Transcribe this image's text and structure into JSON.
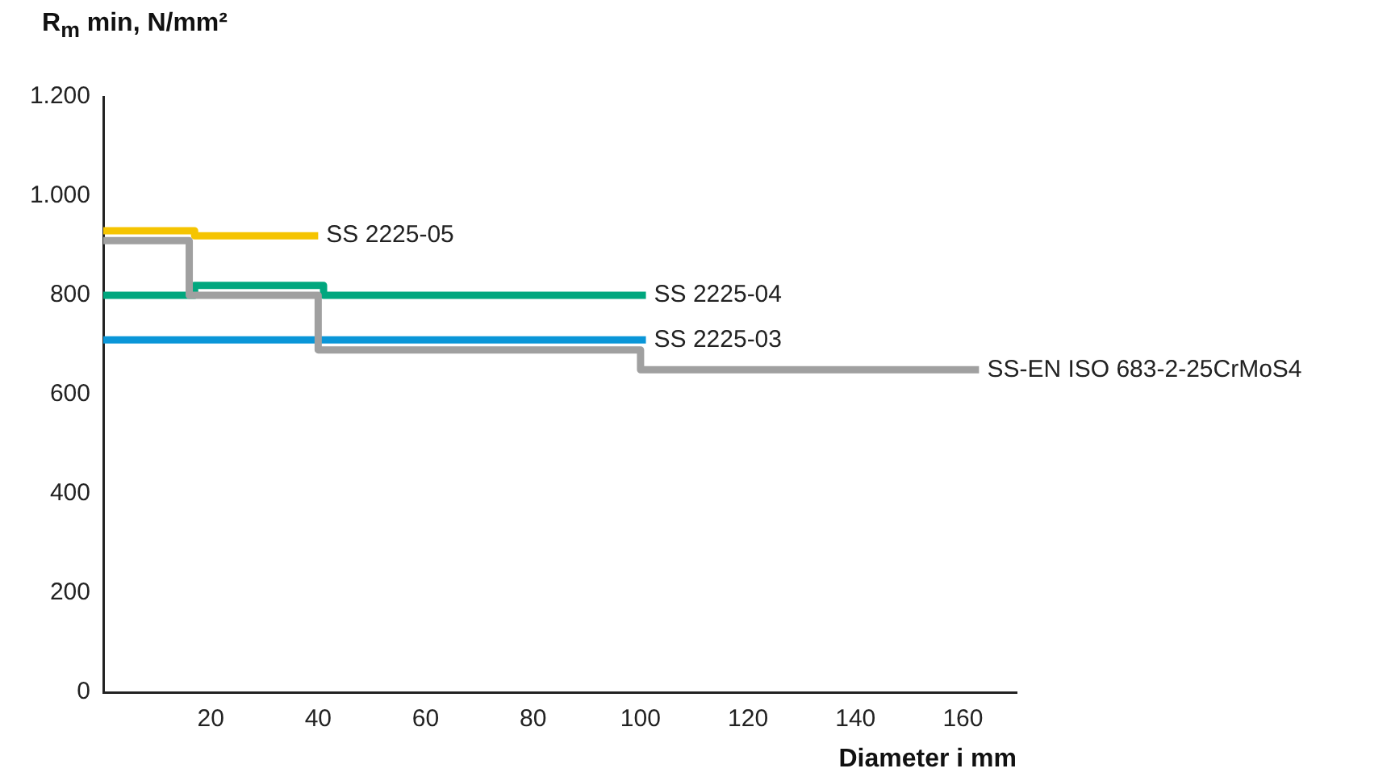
{
  "chart_data": {
    "type": "step",
    "ylabel": "R$_{m}$ min, N/mm²",
    "xlabel": "Diameter i mm",
    "xlim": [
      0,
      170
    ],
    "xticks": [
      20,
      40,
      60,
      80,
      100,
      120,
      140,
      160
    ],
    "ylim": [
      0,
      1200
    ],
    "yticks": [
      0,
      200,
      400,
      600,
      800,
      {
        "value": 1000,
        "label": "1.000"
      },
      {
        "value": 1200,
        "label": "1.200"
      }
    ],
    "grid": false,
    "legend": false,
    "marker": "none",
    "series": [
      {
        "name": "SS-EN ISO 683-2-25CrMoS4",
        "color": "#a0a0a0",
        "x": [
          0,
          16,
          40,
          100,
          163
        ],
        "values": [
          910,
          800,
          690,
          650,
          650
        ]
      },
      {
        "name": "SS 2225-05",
        "color": "#f5c400",
        "x": [
          0,
          17,
          40
        ],
        "values": [
          930,
          920,
          920
        ]
      },
      {
        "name": "SS 2225-04",
        "color": "#00a77e",
        "x": [
          0,
          17,
          41,
          101
        ],
        "values": [
          800,
          820,
          800,
          800
        ]
      },
      {
        "name": "SS 2225-03",
        "color": "#0a96d8",
        "x": [
          0,
          101
        ],
        "values": [
          710,
          710
        ]
      }
    ]
  }
}
